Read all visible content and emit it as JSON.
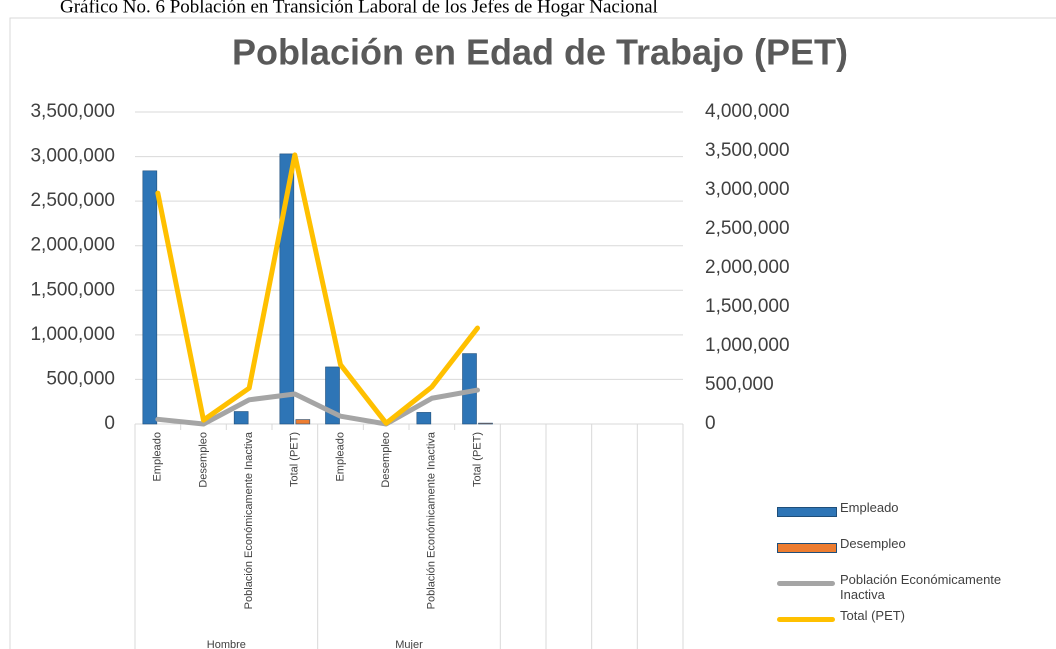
{
  "caption": "Gráfico No. 6  Población en Transición Laboral de los Jefes de Hogar Nacional",
  "chart_data": {
    "type": "bar-line",
    "title": "Población en Edad de Trabajo (PET)",
    "categories": [
      "Empleado",
      "Desempleo",
      "Población Económicamente Inactiva",
      "Total (PET)",
      "Empleado",
      "Desempleo",
      "Población Económicamente Inactiva",
      "Total (PET)",
      null,
      null,
      null,
      null
    ],
    "groups": [
      "Hombre",
      "Mujer"
    ],
    "ylim": [
      0,
      3500000
    ],
    "yticks": [
      0,
      {
        "value": 500000,
        "label": "500,000"
      },
      {
        "value": 1000000,
        "label": "1,000,000"
      },
      {
        "value": 1500000,
        "label": "1,500,000"
      },
      {
        "value": 2000000,
        "label": "2,000,000"
      },
      {
        "value": 2500000,
        "label": "2,500,000"
      },
      {
        "value": 3000000,
        "label": "3,000,000"
      },
      {
        "value": 3500000,
        "label": "3,500,000"
      }
    ],
    "y2lim": [
      0,
      4000000
    ],
    "y2ticks": [
      0,
      {
        "value": 500000,
        "label": "500,000"
      },
      {
        "value": 1000000,
        "label": "1,000,000"
      },
      {
        "value": 1500000,
        "label": "1,500,000"
      },
      {
        "value": 2000000,
        "label": "2,000,000"
      },
      {
        "value": 2500000,
        "label": "2,500,000"
      },
      {
        "value": 3000000,
        "label": "3,000,000"
      },
      {
        "value": 3500000,
        "label": "3,500,000"
      },
      {
        "value": 4000000,
        "label": "4,000,000"
      }
    ],
    "grid": true,
    "legend": "bottom-right",
    "series": [
      {
        "name": "Empleado",
        "type": "bar",
        "color": "#2e75b6",
        "values": [
          2840000,
          0,
          140000,
          3030000,
          640000,
          0,
          130000,
          790000,
          null,
          null,
          null,
          null
        ]
      },
      {
        "name": "Desempleo",
        "type": "bar",
        "color": "#ed7d31",
        "values": [
          0,
          0,
          0,
          50000,
          0,
          0,
          0,
          10000,
          null,
          null,
          null,
          null
        ]
      },
      {
        "name": "Población Económicamente Inactiva",
        "type": "line",
        "axis": "y2",
        "color": "#a5a5a5",
        "values": [
          60000,
          0,
          310000,
          385000,
          100000,
          0,
          330000,
          435000,
          null,
          null,
          null,
          null
        ]
      },
      {
        "name": "Total (PET)",
        "type": "line",
        "axis": "y2",
        "color": "#ffc000",
        "values": [
          2960000,
          50000,
          460000,
          3450000,
          760000,
          10000,
          475000,
          1230000,
          null,
          null,
          null,
          null
        ]
      }
    ]
  }
}
